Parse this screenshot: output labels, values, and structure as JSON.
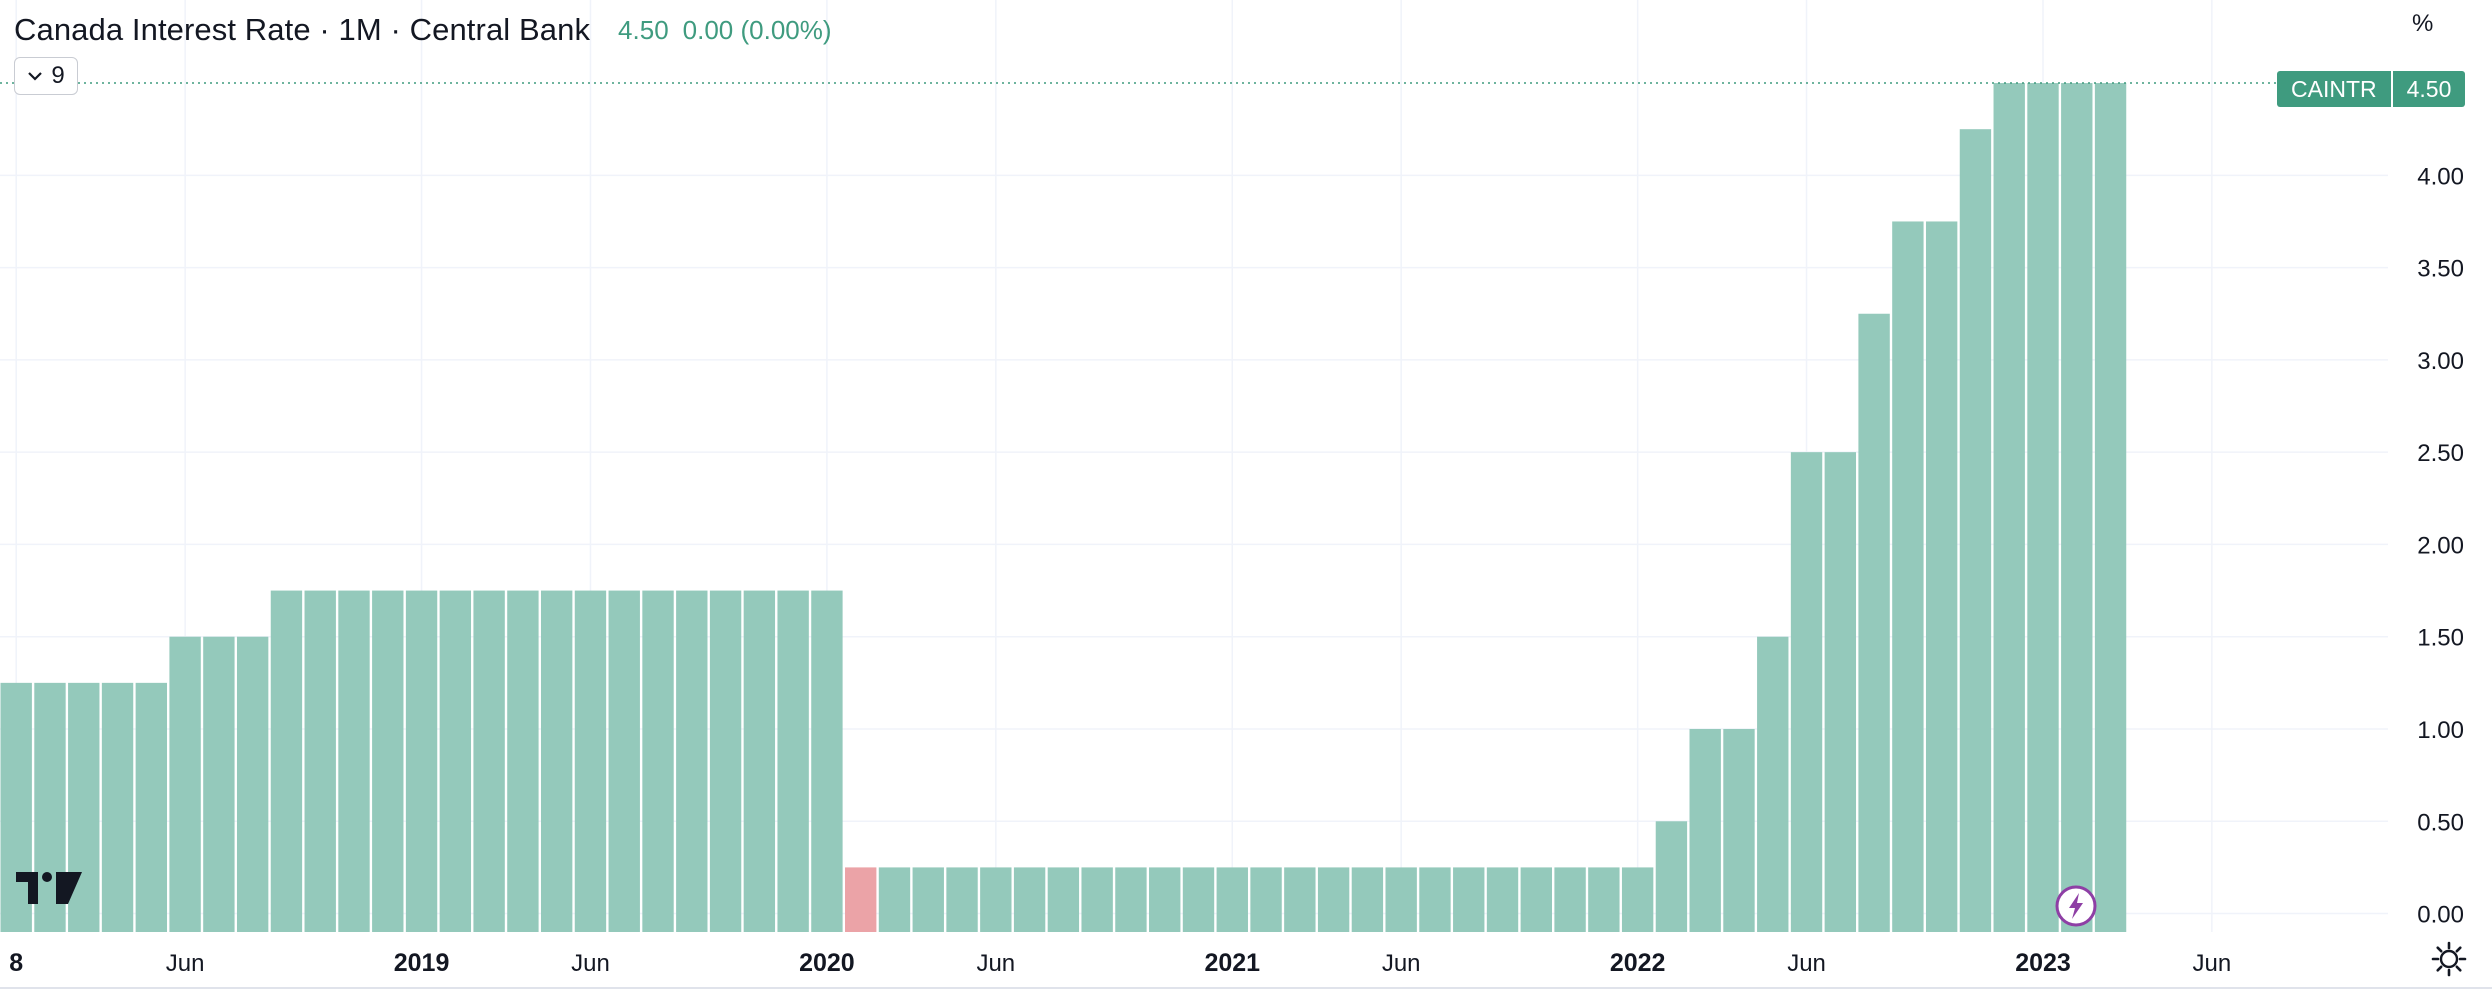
{
  "header": {
    "title": "Canada Interest Rate · 1M · Central Bank",
    "last_value": "4.50",
    "change": "0.00 (0.00%)",
    "indicator_count": "9",
    "unit": "%"
  },
  "price_badge": {
    "symbol": "CAINTR",
    "value": "4.50"
  },
  "colors": {
    "up": "#94c9bb",
    "down": "#eba3a7",
    "accent": "#3f9b7f",
    "grid": "#f0f3fa",
    "axis_text": "#131722",
    "event_marker": "#8e3fa5"
  },
  "icons": {
    "logo": "tradingview-logo-icon",
    "toggle": "chevron-down-icon",
    "event": "lightning-icon",
    "settings": "gear-icon"
  },
  "chart_data": {
    "type": "bar",
    "title": "Canada Interest Rate · 1M · Central Bank",
    "ylabel": "%",
    "ylim": [
      -0.1,
      4.95
    ],
    "y_ticks": [
      "0.00",
      "0.50",
      "1.00",
      "1.50",
      "2.00",
      "2.50",
      "3.00",
      "3.50",
      "4.00"
    ],
    "x_ticks": [
      {
        "date": "2018-01",
        "label": "8",
        "bold": true
      },
      {
        "date": "2018-06",
        "label": "Jun",
        "bold": false
      },
      {
        "date": "2019-01",
        "label": "2019",
        "bold": true
      },
      {
        "date": "2019-06",
        "label": "Jun",
        "bold": false
      },
      {
        "date": "2020-01",
        "label": "2020",
        "bold": true
      },
      {
        "date": "2020-06",
        "label": "Jun",
        "bold": false
      },
      {
        "date": "2021-01",
        "label": "2021",
        "bold": true
      },
      {
        "date": "2021-06",
        "label": "Jun",
        "bold": false
      },
      {
        "date": "2022-01",
        "label": "2022",
        "bold": true
      },
      {
        "date": "2022-06",
        "label": "Jun",
        "bold": false
      },
      {
        "date": "2023-01",
        "label": "2023",
        "bold": true
      },
      {
        "date": "2023-06",
        "label": "Jun",
        "bold": false
      }
    ],
    "series": [
      {
        "dates": [
          "2018-01",
          "2018-02",
          "2018-03",
          "2018-04",
          "2018-05",
          "2018-06",
          "2018-07",
          "2018-08",
          "2018-09",
          "2018-10",
          "2018-11",
          "2018-12",
          "2019-01",
          "2019-02",
          "2019-03",
          "2019-04",
          "2019-05",
          "2019-06",
          "2019-07",
          "2019-08",
          "2019-09",
          "2019-10",
          "2019-11",
          "2019-12",
          "2020-01",
          "2020-02",
          "2020-03",
          "2020-04",
          "2020-05",
          "2020-06",
          "2020-07",
          "2020-08",
          "2020-09",
          "2020-10",
          "2020-11",
          "2020-12",
          "2021-01",
          "2021-02",
          "2021-03",
          "2021-04",
          "2021-05",
          "2021-06",
          "2021-07",
          "2021-08",
          "2021-09",
          "2021-10",
          "2021-11",
          "2021-12",
          "2022-01",
          "2022-02",
          "2022-03",
          "2022-04",
          "2022-05",
          "2022-06",
          "2022-07",
          "2022-08",
          "2022-09",
          "2022-10",
          "2022-11",
          "2022-12",
          "2023-01",
          "2023-02",
          "2023-03"
        ],
        "values": [
          1.25,
          1.25,
          1.25,
          1.25,
          1.25,
          1.5,
          1.5,
          1.5,
          1.75,
          1.75,
          1.75,
          1.75,
          1.75,
          1.75,
          1.75,
          1.75,
          1.75,
          1.75,
          1.75,
          1.75,
          1.75,
          1.75,
          1.75,
          1.75,
          1.75,
          0.25,
          0.25,
          0.25,
          0.25,
          0.25,
          0.25,
          0.25,
          0.25,
          0.25,
          0.25,
          0.25,
          0.25,
          0.25,
          0.25,
          0.25,
          0.25,
          0.25,
          0.25,
          0.25,
          0.25,
          0.25,
          0.25,
          0.25,
          0.25,
          0.5,
          1.0,
          1.0,
          1.5,
          2.5,
          2.5,
          3.25,
          3.75,
          3.75,
          4.25,
          4.5,
          4.5,
          4.5,
          4.5
        ],
        "direction": [
          "up",
          "up",
          "up",
          "up",
          "up",
          "up",
          "up",
          "up",
          "up",
          "up",
          "up",
          "up",
          "up",
          "up",
          "up",
          "up",
          "up",
          "up",
          "up",
          "up",
          "up",
          "up",
          "up",
          "up",
          "up",
          "down",
          "up",
          "up",
          "up",
          "up",
          "up",
          "up",
          "up",
          "up",
          "up",
          "up",
          "up",
          "up",
          "up",
          "up",
          "up",
          "up",
          "up",
          "up",
          "up",
          "up",
          "up",
          "up",
          "up",
          "up",
          "up",
          "up",
          "up",
          "up",
          "up",
          "up",
          "up",
          "up",
          "up",
          "up",
          "up",
          "up",
          "up"
        ]
      }
    ],
    "last_value_line": 4.5,
    "grid": true,
    "legend": "top-left"
  }
}
